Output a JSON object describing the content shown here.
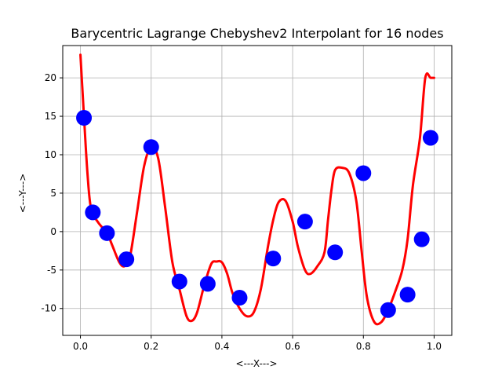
{
  "chart_data": {
    "type": "line",
    "title": "Barycentric Lagrange Chebyshev2 Interpolant for 16 nodes",
    "xlabel": "<---X--->",
    "ylabel": "<---Y--->",
    "xlim": [
      -0.05,
      1.05
    ],
    "ylim": [
      -13.5,
      24.2
    ],
    "xticks": [
      "0.0",
      "0.2",
      "0.4",
      "0.6",
      "0.8",
      "1.0"
    ],
    "yticks": [
      "-10",
      "-5",
      "0",
      "5",
      "10",
      "15",
      "20"
    ],
    "grid": true,
    "colors": {
      "curve": "#ff0000",
      "nodes": "#0000ff",
      "grid": "#b0b0b0",
      "axes": "#000000"
    },
    "series": [
      {
        "kind": "points",
        "x": [
          0.01,
          0.035,
          0.075,
          0.13,
          0.2,
          0.28,
          0.36,
          0.45,
          0.545,
          0.635,
          0.72,
          0.8,
          0.87,
          0.925,
          0.965,
          0.99
        ],
        "y": [
          14.8,
          2.5,
          -0.2,
          -3.6,
          11.0,
          -6.5,
          -6.8,
          -8.6,
          -3.5,
          1.3,
          -2.7,
          7.6,
          -10.2,
          -8.2,
          -1.0,
          12.2
        ]
      },
      {
        "kind": "line",
        "x": [
          0.0,
          0.01,
          0.02,
          0.03,
          0.05,
          0.075,
          0.09,
          0.11,
          0.125,
          0.14,
          0.16,
          0.18,
          0.2,
          0.22,
          0.24,
          0.26,
          0.28,
          0.3,
          0.315,
          0.33,
          0.35,
          0.37,
          0.385,
          0.4,
          0.415,
          0.43,
          0.45,
          0.47,
          0.49,
          0.51,
          0.53,
          0.545,
          0.56,
          0.58,
          0.6,
          0.615,
          0.635,
          0.65,
          0.67,
          0.69,
          0.7,
          0.71,
          0.72,
          0.74,
          0.76,
          0.78,
          0.795,
          0.81,
          0.83,
          0.85,
          0.87,
          0.89,
          0.91,
          0.925,
          0.94,
          0.96,
          0.975,
          0.99,
          1.0
        ],
        "y": [
          23.0,
          15.0,
          7.5,
          3.0,
          1.2,
          -0.2,
          -1.8,
          -4.0,
          -4.5,
          -3.3,
          2.5,
          8.5,
          11.0,
          9.5,
          3.0,
          -4.0,
          -7.5,
          -11.0,
          -11.6,
          -10.5,
          -7.0,
          -4.2,
          -3.9,
          -4.0,
          -5.5,
          -8.0,
          -10.0,
          -11.0,
          -10.5,
          -7.5,
          -2.0,
          1.5,
          3.8,
          4.0,
          1.3,
          -2.0,
          -5.0,
          -5.5,
          -4.5,
          -2.7,
          1.5,
          5.5,
          8.0,
          8.3,
          7.6,
          4.0,
          -2.5,
          -8.5,
          -11.7,
          -11.8,
          -10.2,
          -7.8,
          -5.0,
          -1.0,
          6.0,
          12.2,
          20.0,
          20.0,
          20.0
        ]
      }
    ]
  }
}
